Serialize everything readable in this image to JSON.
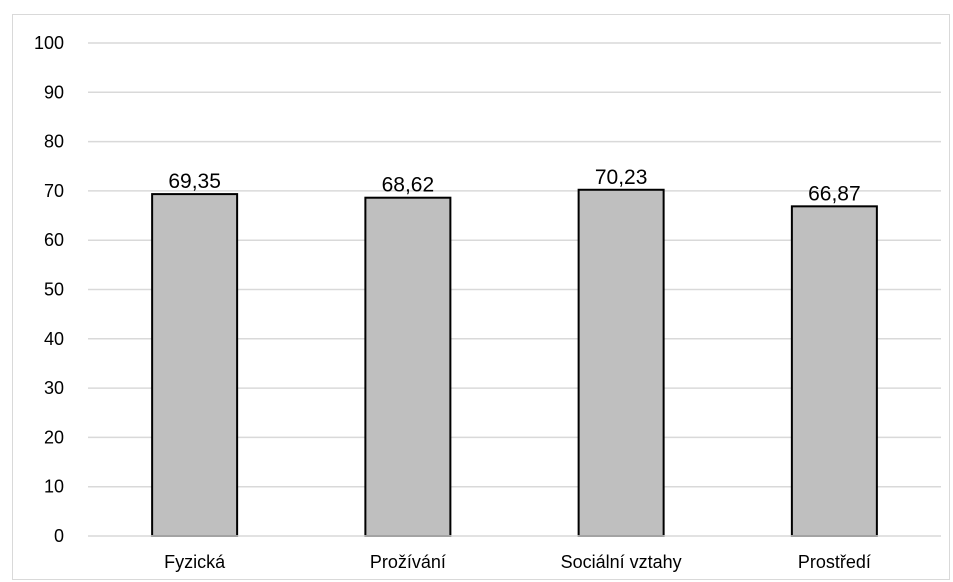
{
  "chart_data": {
    "type": "bar",
    "title": "",
    "xlabel": "",
    "ylabel": "",
    "categories": [
      "Fyzická",
      "Prožívání",
      "Sociální vztahy",
      "Prostředí"
    ],
    "values": [
      69.35,
      68.62,
      70.23,
      66.87
    ],
    "data_labels": [
      "69,35",
      "68,62",
      "70,23",
      "66,87"
    ],
    "ylim": [
      0,
      100
    ],
    "yticks": [
      0,
      10,
      20,
      30,
      40,
      50,
      60,
      70,
      80,
      90,
      100
    ],
    "ytick_labels": [
      "0",
      "10",
      "20",
      "30",
      "40",
      "50",
      "60",
      "70",
      "80",
      "90",
      "100"
    ],
    "grid": true,
    "legend": "none",
    "bar_color": "#bfbfbf",
    "bar_outline_color": "#000000",
    "grid_color": "#d9d9d9"
  }
}
